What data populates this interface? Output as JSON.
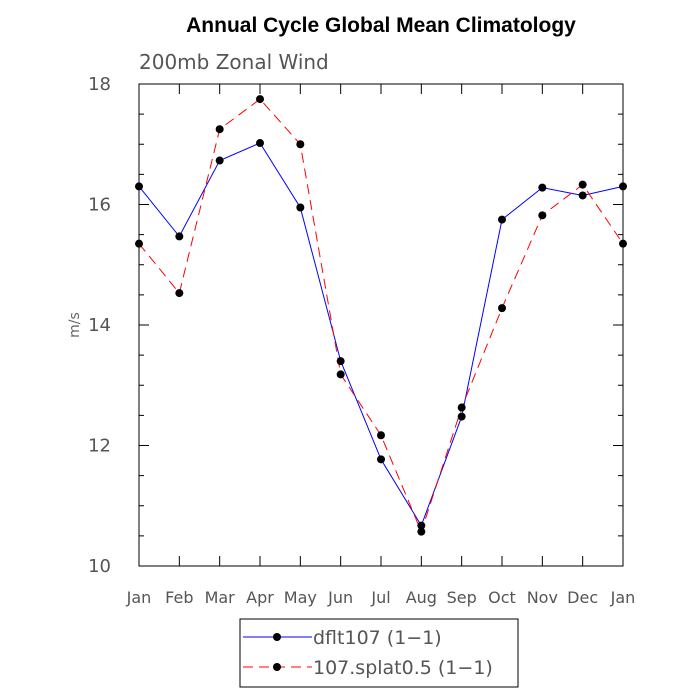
{
  "chart_data": {
    "type": "line",
    "title": "Annual Cycle Global Mean Climatology",
    "subtitle": "200mb Zonal Wind",
    "xlabel": "",
    "ylabel": "m/s",
    "ylim": [
      10,
      18
    ],
    "yticks": [
      "10",
      "12",
      "14",
      "16",
      "18"
    ],
    "categories": [
      "Jan",
      "Feb",
      "Mar",
      "Apr",
      "May",
      "Jun",
      "Jul",
      "Aug",
      "Sep",
      "Oct",
      "Nov",
      "Dec",
      "Jan"
    ],
    "grid": false,
    "legend_position": "bottom",
    "series": [
      {
        "name": "dflt107 (1−1)",
        "color": "#0000ff",
        "dash": "solid",
        "marker": "filled-circle",
        "values": [
          16.3,
          15.47,
          16.73,
          17.02,
          15.95,
          13.4,
          11.77,
          10.67,
          12.48,
          15.75,
          16.28,
          16.15,
          16.3
        ]
      },
      {
        "name": "107.splat0.5 (1−1)",
        "color": "#ff0000",
        "dash": "dashed",
        "marker": "filled-circle",
        "values": [
          15.35,
          14.53,
          17.25,
          17.75,
          17.0,
          13.18,
          12.17,
          10.57,
          12.63,
          14.28,
          15.82,
          16.33,
          15.35
        ]
      }
    ]
  }
}
